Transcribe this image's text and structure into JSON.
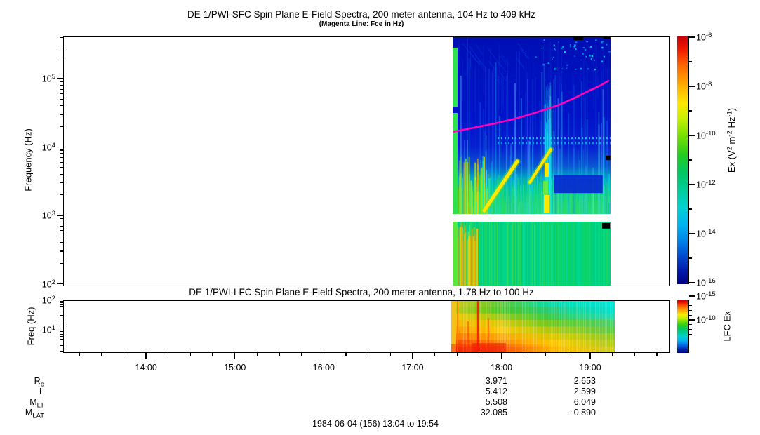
{
  "titles": {
    "sfc_title": "DE 1/PWI-SFC  Spin Plane E-Field Spectra, 200 meter antenna, 104 Hz to 409 kHz",
    "sfc_subtitle": "(Magenta Line: Fce in Hz)",
    "lfc_title": "DE 1/PWI-LFC  Spin Plane E-Field Spectra, 200 meter antenna, 1.78 Hz to 100 Hz",
    "footer_date": "1984-06-04 (156) 13:04 to 19:54"
  },
  "axes": {
    "sfc_y": {
      "label": "Frequency (Hz)",
      "scale": "log",
      "ticks_exp": [
        5,
        4,
        3,
        2
      ],
      "range_hz": [
        104,
        409000
      ]
    },
    "lfc_y": {
      "label": "Freq (Hz)",
      "scale": "log",
      "ticks_exp": [
        2,
        1
      ],
      "range_hz": [
        1.78,
        100
      ]
    },
    "x": {
      "tick_labels": [
        "14:00",
        "15:00",
        "16:00",
        "17:00",
        "18:00",
        "19:00"
      ],
      "tick_hours": [
        14,
        15,
        16,
        17,
        18,
        19
      ],
      "range_hours": [
        13.0667,
        19.9
      ],
      "minor_step_hours": 0.25
    }
  },
  "colorbars": {
    "sfc": {
      "ticks_exp": [
        -6,
        -8,
        -10,
        -12,
        -14,
        -16
      ],
      "label_segments": [
        {
          "t": "Ex (V"
        },
        {
          "t": "2",
          "sup": true
        },
        {
          "t": " m"
        },
        {
          "t": "-2",
          "sup": true
        },
        {
          "t": " Hz"
        },
        {
          "t": "-1",
          "sup": true
        },
        {
          "t": ")"
        }
      ],
      "gradient": [
        [
          0,
          "#c80000"
        ],
        [
          0.05,
          "#f01800"
        ],
        [
          0.12,
          "#ff6a00"
        ],
        [
          0.2,
          "#ffb000"
        ],
        [
          0.27,
          "#ffe800"
        ],
        [
          0.33,
          "#c8f000"
        ],
        [
          0.4,
          "#78e000"
        ],
        [
          0.48,
          "#22cc22"
        ],
        [
          0.55,
          "#00c864"
        ],
        [
          0.62,
          "#00cc9a"
        ],
        [
          0.69,
          "#00d2d2"
        ],
        [
          0.76,
          "#00b4f0"
        ],
        [
          0.83,
          "#0080e8"
        ],
        [
          0.89,
          "#0048cc"
        ],
        [
          0.95,
          "#0018a8"
        ],
        [
          1,
          "#000080"
        ]
      ]
    },
    "lfc": {
      "label": "LFC Ex",
      "ticks_exp": [
        -10,
        -15
      ],
      "minor_exp_range": [
        -7,
        -16
      ]
    }
  },
  "annotations": {
    "rows": [
      {
        "base": "R",
        "sub": "e",
        "v18": "3.971",
        "v19": "2.653"
      },
      {
        "base": "L",
        "sub": "",
        "v18": "5.412",
        "v19": "2.599"
      },
      {
        "base": "M",
        "sub": "LT",
        "v18": "5.508",
        "v19": "6.049"
      },
      {
        "base": "M",
        "sub": "LAT",
        "v18": "32.085",
        "v19": "-0.890"
      }
    ]
  },
  "chart_data": {
    "type": "heatmap",
    "subtype": "time-frequency spectrogram, two stacked panels",
    "title": "DE 1/PWI-SFC  Spin Plane E-Field Spectra, 200 meter antenna, 104 Hz to 409 kHz",
    "xlabel": "Time (UT), 1984-06-04 (156) 13:04 to 19:54",
    "time_range_hours": [
      13.0667,
      19.9
    ],
    "data_time_span_hours": [
      17.45,
      19.21
    ],
    "panels": [
      {
        "id": "SFC",
        "ylabel": "Frequency (Hz)",
        "freq_range_hz": [
          104,
          409000
        ],
        "white_gap_hz": [
          810,
          1050
        ],
        "value_label": "Ex (V2 m-2 Hz-1)",
        "value_range": [
          1e-16,
          1e-06
        ],
        "summary": "No data before ~17:27 UT. Above ~3 kHz mostly dark blue (~1e-15) with cyan vertical streaks; below ~3 kHz cyan-green (~1e-11); yellow diagonal chorus-like features 17:45-18:10 near 1-5 kHz; bright vertical feature near 18:30; green strip at left data edge."
      },
      {
        "id": "LFC",
        "ylabel": "Freq (Hz)",
        "freq_range_hz": [
          1.78,
          100
        ],
        "value_label": "LFC Ex",
        "value_range": [
          1e-17,
          1e-06
        ],
        "summary": "Intense red/orange (~1e-7) at lowest frequencies 17:27-18:00 fading to yellow then green; cyan (~1e-13) at high frequencies after 18:30; narrow red vertical burst near 17:44."
      }
    ],
    "fce_line": {
      "label": "Fce in Hz",
      "color": "#ff00bb",
      "points": [
        [
          17.451,
          16600
        ],
        [
          17.688,
          19100
        ],
        [
          17.925,
          22100
        ],
        [
          18.162,
          26000
        ],
        [
          18.399,
          32200
        ],
        [
          18.636,
          40700
        ],
        [
          18.834,
          52900
        ],
        [
          18.992,
          67000
        ],
        [
          19.11,
          78900
        ],
        [
          19.205,
          93100
        ]
      ]
    },
    "sfc_texture": {
      "upper_stops": [
        [
          0,
          "#000fb4"
        ],
        [
          0.45,
          "#0013c8"
        ],
        [
          0.62,
          "#0520d0"
        ],
        [
          0.73,
          "#0a55d2"
        ],
        [
          0.8,
          "#00a8c4"
        ],
        [
          0.87,
          "#00cc96"
        ],
        [
          1,
          "#2ad95c"
        ]
      ],
      "lower_base": "#00cf7a",
      "green_strip": "#2ee24e",
      "pocket": {
        "u": [
          0.64,
          0.95
        ],
        "v": [
          0.555,
          0.627
        ],
        "color": "#0726d0"
      },
      "column_u": [
        0.578,
        0.627
      ],
      "diagonals": [
        {
          "from": [
            0.2,
            0.697
          ],
          "to": [
            0.41,
            0.5
          ],
          "color": "#ffe800",
          "w": 5
        },
        {
          "from": [
            0.489,
            0.584
          ],
          "to": [
            0.622,
            0.452
          ],
          "color": "#ffe800",
          "w": 4
        }
      ],
      "dash_rows_v": [
        0.402,
        0.422
      ],
      "black_marks": [
        [
          0.764,
          0,
          0.062,
          0.014
        ],
        [
          0.955,
          0,
          0.04,
          0.011
        ],
        [
          0.97,
          0.477,
          0.028,
          0.018
        ],
        [
          0.947,
          0.747,
          0.049,
          0.022
        ]
      ]
    },
    "lfc_texture": {
      "left_edge_color": "#f5c21a",
      "red_line_u": 0.158,
      "rows": [
        [
          "#ddcc11",
          "#55cc33",
          "#00ddaa",
          "#00e4d4"
        ],
        [
          "#cccc11",
          "#44cc22",
          "#22cc77",
          "#00dcc4"
        ],
        [
          "#ffcc00",
          "#99cc11",
          "#33cc44",
          "#33d698"
        ],
        [
          "#ffbb00",
          "#ddcc00",
          "#66cc22",
          "#44d066"
        ],
        [
          "#ff9900",
          "#ffcc00",
          "#aacc11",
          "#55cc44"
        ],
        [
          "#ff7700",
          "#ffaa00",
          "#ddcc00",
          "#88cc22"
        ],
        [
          "#ff4400",
          "#ff8800",
          "#ffcc00",
          "#aacc11"
        ],
        [
          "#ee2200",
          "#ff6600",
          "#ffbb00",
          "#cccc11"
        ]
      ]
    }
  }
}
